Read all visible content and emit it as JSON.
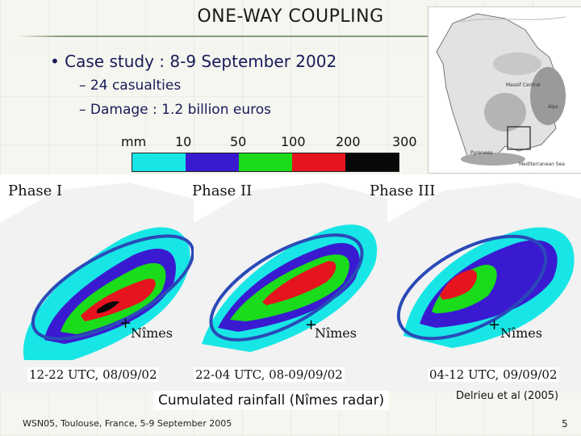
{
  "title": "ONE-WAY COUPLING",
  "bullet": "• Case study : 8-9 September 2002",
  "subs": [
    "– 24 casualties",
    "– Damage : 1.2 billion euros"
  ],
  "scale": {
    "unit": "mm",
    "ticks": [
      "10",
      "50",
      "100",
      "200",
      "300"
    ],
    "colors": [
      "#18e6e6",
      "#3a1ad0",
      "#1adc1a",
      "#e6141e",
      "#080808"
    ]
  },
  "inset_labels": [
    "Massif Central",
    "Alps",
    "Pyrenees",
    "Mediterranean Sea"
  ],
  "phases": [
    {
      "label": "Phase I",
      "time": "12-22 UTC, 08/09/02",
      "city": "Nîmes"
    },
    {
      "label": "Phase II",
      "time": "22-04 UTC, 08-09/09/02",
      "city": "Nîmes"
    },
    {
      "label": "Phase III",
      "time": "04-12 UTC, 09/09/02",
      "city": "Nîmes"
    }
  ],
  "caption": "Cumulated rainfall (Nîmes radar)",
  "credit": "Delrieu et al (2005)",
  "footer": "WSN05, Toulouse, France, 5-9 September 2005",
  "page_number": "5"
}
